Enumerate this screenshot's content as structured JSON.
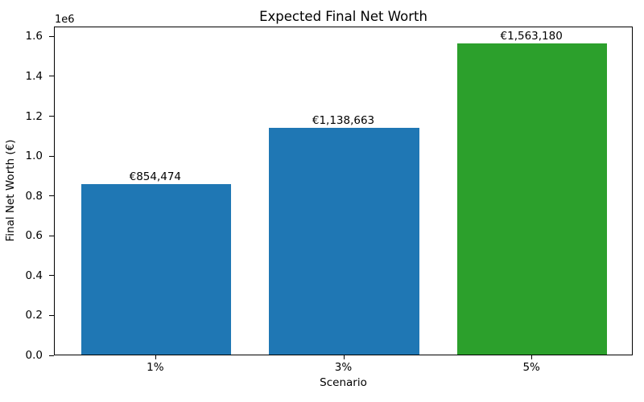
{
  "chart_data": {
    "type": "bar",
    "title": "Expected Final Net Worth",
    "xlabel": "Scenario",
    "ylabel": "Final Net Worth (€)",
    "categories": [
      "1%",
      "3%",
      "5%"
    ],
    "values": [
      854474,
      1138663,
      1563180
    ],
    "bar_labels": [
      "€854,474",
      "€1,138,663",
      "€1,563,180"
    ],
    "bar_colors": [
      "#1f77b4",
      "#1f77b4",
      "#2ca02c"
    ],
    "ylim": [
      0,
      1650000
    ],
    "yticks": [
      0,
      200000,
      400000,
      600000,
      800000,
      1000000,
      1200000,
      1400000,
      1600000
    ],
    "ytick_labels": [
      "0.0",
      "0.2",
      "0.4",
      "0.6",
      "0.8",
      "1.0",
      "1.2",
      "1.4",
      "1.6"
    ],
    "offset_text": "1e6",
    "grid": false,
    "legend": null,
    "background_color": "#ffffff",
    "text_color": "#000000"
  }
}
